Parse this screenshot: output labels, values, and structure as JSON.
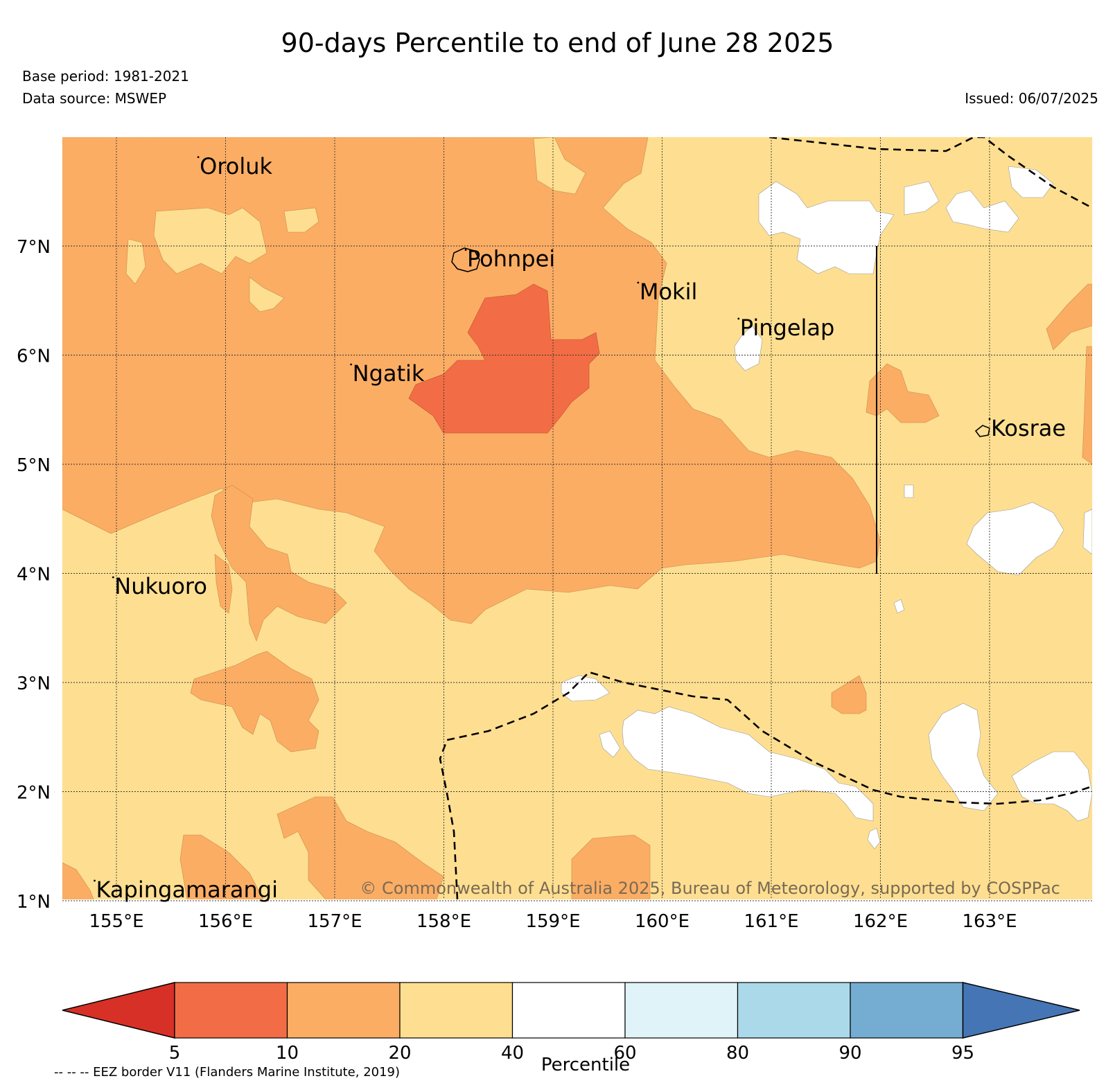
{
  "header": {
    "title": "90-days Percentile to end of June 28 2025",
    "base_period": "Base period: 1981-2021",
    "data_source": "Data source: MSWEP",
    "issued": "Issued: 06/07/2025"
  },
  "map": {
    "lat_labels": [
      "7°N",
      "6°N",
      "5°N",
      "4°N",
      "3°N",
      "2°N",
      "1°N"
    ],
    "lon_labels": [
      "155°E",
      "156°E",
      "157°E",
      "158°E",
      "159°E",
      "160°E",
      "161°E",
      "162°E",
      "163°E"
    ],
    "places": [
      {
        "name": "Oroluk",
        "lon": 155.75,
        "lat": 7.7
      },
      {
        "name": "Pohnpei",
        "lon": 158.2,
        "lat": 6.85
      },
      {
        "name": "Mokil",
        "lon": 159.78,
        "lat": 6.55
      },
      {
        "name": "Pingelap",
        "lon": 160.7,
        "lat": 6.22
      },
      {
        "name": "Ngatik",
        "lon": 157.15,
        "lat": 5.8
      },
      {
        "name": "Kosrae",
        "lon": 163.0,
        "lat": 5.3
      },
      {
        "name": "Nukuoro",
        "lon": 154.97,
        "lat": 3.85
      },
      {
        "name": "Kapingamarangi",
        "lon": 154.8,
        "lat": 1.07
      }
    ],
    "copyright": "© Commonwealth of Australia 2025, Bureau of Meteorology, supported by COSPPac",
    "colors": {
      "p5_10": "#f26d45",
      "p10_20": "#fbad64",
      "p20_40": "#fedf91",
      "p40_60": "#ffffff"
    }
  },
  "legend": {
    "label": "Percentile",
    "ticks": [
      "5",
      "10",
      "20",
      "40",
      "60",
      "80",
      "90",
      "95"
    ],
    "colors": [
      "#d73027",
      "#f26d45",
      "#fbad64",
      "#fedf91",
      "#ffffff",
      "#e0f3f8",
      "#abd9e9",
      "#74add1",
      "#4575b4"
    ],
    "eez_note": "-- -- -- EEZ border V11 (Flanders Marine Institute, 2019)"
  }
}
